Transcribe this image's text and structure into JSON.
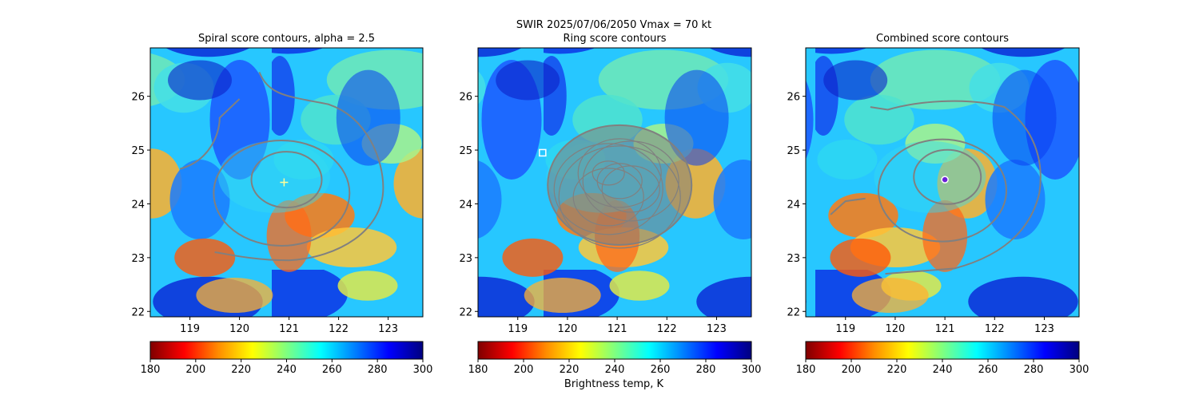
{
  "suptitle": {
    "line1": "SWIR  2025/07/06/2050    Vmax = 70 kt"
  },
  "colorbar_label": "Brightness temp, K",
  "colormap": {
    "name": "jet_r",
    "stops": [
      "#7f0000",
      "#ff0000",
      "#ff8c00",
      "#ffff00",
      "#7fff7f",
      "#00ffff",
      "#0080ff",
      "#0000ff",
      "#00007f"
    ]
  },
  "contour_color": "#808080",
  "chart_data": [
    {
      "type": "heatmap",
      "title": "Spiral score contours, alpha =  2.5",
      "x_ticks": [
        "119",
        "120",
        "121",
        "122",
        "123"
      ],
      "y_ticks": [
        "22",
        "23",
        "24",
        "25",
        "26"
      ],
      "xlim": [
        118.2,
        123.7
      ],
      "ylim": [
        21.9,
        26.9
      ],
      "colorbar": {
        "range": [
          180,
          300
        ],
        "ticks": [
          "180",
          "200",
          "220",
          "240",
          "260",
          "280",
          "300"
        ]
      },
      "center_marker": {
        "lon": 120.9,
        "lat": 24.4,
        "symbol": "+",
        "color": "#ffff99"
      }
    },
    {
      "type": "heatmap",
      "title": "Ring score contours",
      "x_ticks": [
        "119",
        "120",
        "121",
        "122",
        "123"
      ],
      "y_ticks": [
        "22",
        "23",
        "24",
        "25",
        "26"
      ],
      "xlim": [
        118.2,
        123.7
      ],
      "ylim": [
        21.9,
        26.9
      ],
      "colorbar": {
        "range": [
          180,
          300
        ],
        "ticks": [
          "180",
          "200",
          "220",
          "240",
          "260",
          "280",
          "300"
        ]
      },
      "center_marker": {
        "lon": 119.5,
        "lat": 24.95,
        "symbol": "square",
        "color": "#ffffff"
      }
    },
    {
      "type": "heatmap",
      "title": "Combined score contours",
      "x_ticks": [
        "119",
        "120",
        "121",
        "122",
        "123"
      ],
      "y_ticks": [
        "22",
        "23",
        "24",
        "25",
        "26"
      ],
      "xlim": [
        118.2,
        123.7
      ],
      "ylim": [
        21.9,
        26.9
      ],
      "colorbar": {
        "range": [
          180,
          300
        ],
        "ticks": [
          "180",
          "200",
          "220",
          "240",
          "260",
          "280",
          "300"
        ]
      },
      "center_marker": {
        "lon": 121.0,
        "lat": 24.45,
        "symbol": "circle",
        "color": "#6a1fd8"
      }
    }
  ]
}
